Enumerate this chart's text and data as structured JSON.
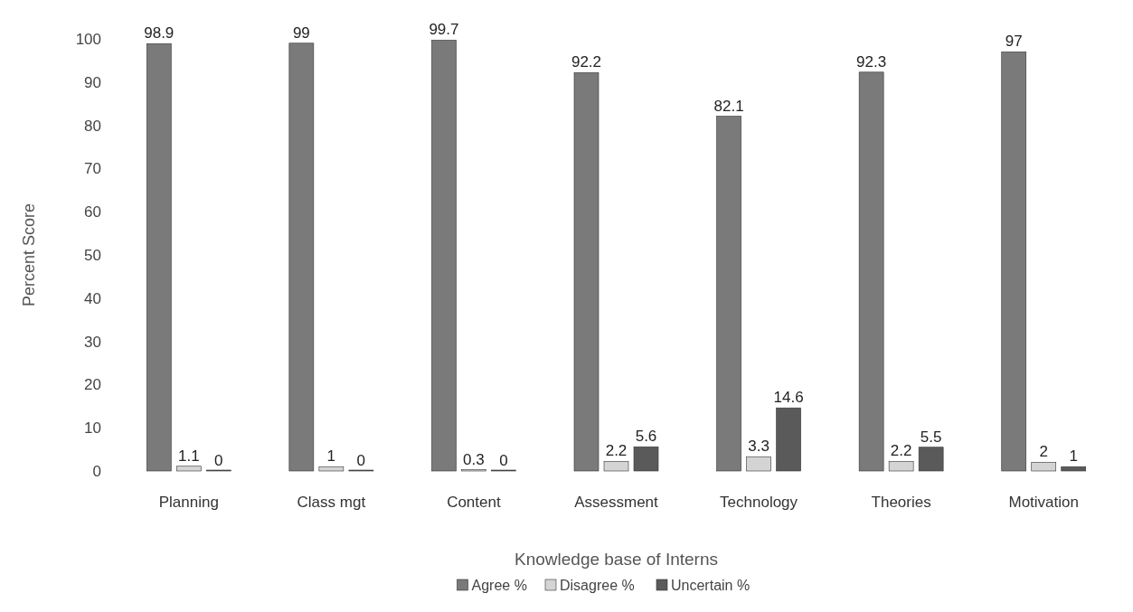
{
  "chart_data": {
    "type": "bar",
    "xlabel": "Knowledge base of Interns",
    "ylabel": "Percent Score",
    "categories": [
      "Planning",
      "Class mgt",
      "Content",
      "Assessment",
      "Technology",
      "Theories",
      "Motivation"
    ],
    "series": [
      {
        "name": "Agree %",
        "color": "#7a7a7a",
        "values": [
          98.9,
          99,
          99.7,
          92.2,
          82.1,
          92.3,
          97
        ]
      },
      {
        "name": "Disagree %",
        "color": "#d4d4d4",
        "values": [
          1.1,
          1,
          0.3,
          2.2,
          3.3,
          2.2,
          2
        ]
      },
      {
        "name": "Uncertain %",
        "color": "#5a5a5a",
        "values": [
          0,
          0,
          0,
          5.6,
          14.6,
          5.5,
          1
        ]
      }
    ],
    "ylim": [
      0,
      100
    ],
    "yticks": [
      0,
      10,
      20,
      30,
      40,
      50,
      60,
      70,
      80,
      90,
      100
    ],
    "grid": false,
    "legend": "bottom",
    "data_labels": true
  }
}
